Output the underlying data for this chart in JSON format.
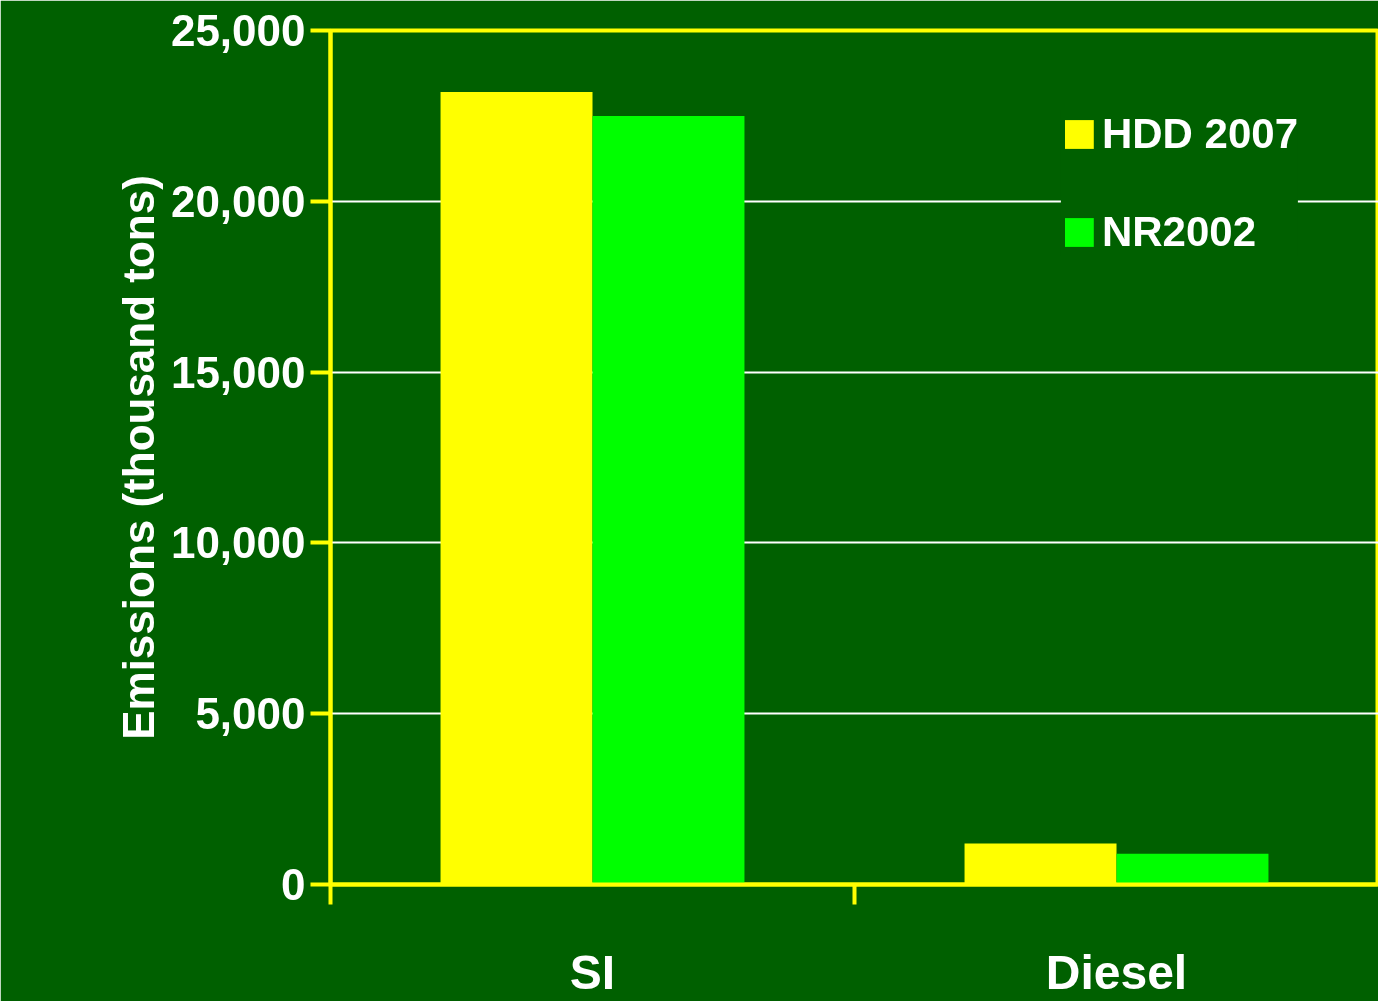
{
  "chart_data": {
    "type": "bar",
    "ylabel": "Emissions (thousand tons)",
    "categories": [
      "SI",
      "Diesel"
    ],
    "series": [
      {
        "name": "HDD 2007",
        "color": "#ffff00",
        "values": [
          23200,
          1200
        ]
      },
      {
        "name": "NR2002",
        "color": "#00ff00",
        "values": [
          22500,
          900
        ]
      }
    ],
    "ylim": [
      0,
      25000
    ],
    "yticks": [
      {
        "value": 0,
        "label": "0"
      },
      {
        "value": 5000,
        "label": "5,000"
      },
      {
        "value": 10000,
        "label": "10,000"
      },
      {
        "value": 15000,
        "label": "15,000"
      },
      {
        "value": 20000,
        "label": "20,000"
      },
      {
        "value": 25000,
        "label": "25,000"
      }
    ],
    "grid": "y",
    "legend": "top right"
  }
}
